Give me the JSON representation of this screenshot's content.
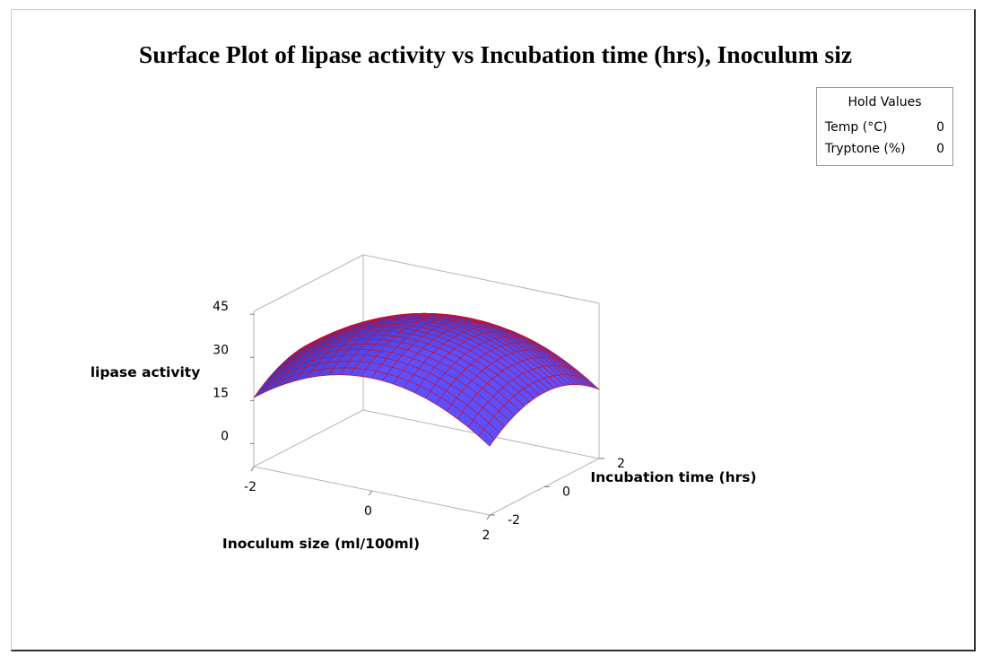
{
  "chart_data": {
    "type": "surface",
    "title": "Surface Plot of lipase activity vs Incubation time (hrs), Inoculum siz",
    "xlabel": "Inoculum size (ml/100ml)",
    "ylabel": "Incubation time (hrs)",
    "zlabel": "lipase activity",
    "x_ticks": [
      "-2",
      "0",
      "2"
    ],
    "y_ticks": [
      "-2",
      "0",
      "2"
    ],
    "z_ticks": [
      "0",
      "15",
      "30",
      "45"
    ],
    "xlim": [
      -2,
      2
    ],
    "ylim": [
      -2,
      2
    ],
    "zlim": [
      -8,
      46
    ],
    "surface_model": {
      "intercept": 40,
      "x_sq": -3.8,
      "y_sq": -2.2,
      "xy": 0
    },
    "hold_values": {
      "title": "Hold Values",
      "items": [
        {
          "name": "Temp (°C)",
          "value": "0"
        },
        {
          "name": "Tryptone (%)",
          "value": "0"
        }
      ]
    },
    "colors": {
      "surface": "#4646ee",
      "mesh": "#c8102e",
      "axes": "#b4b4b4"
    }
  }
}
